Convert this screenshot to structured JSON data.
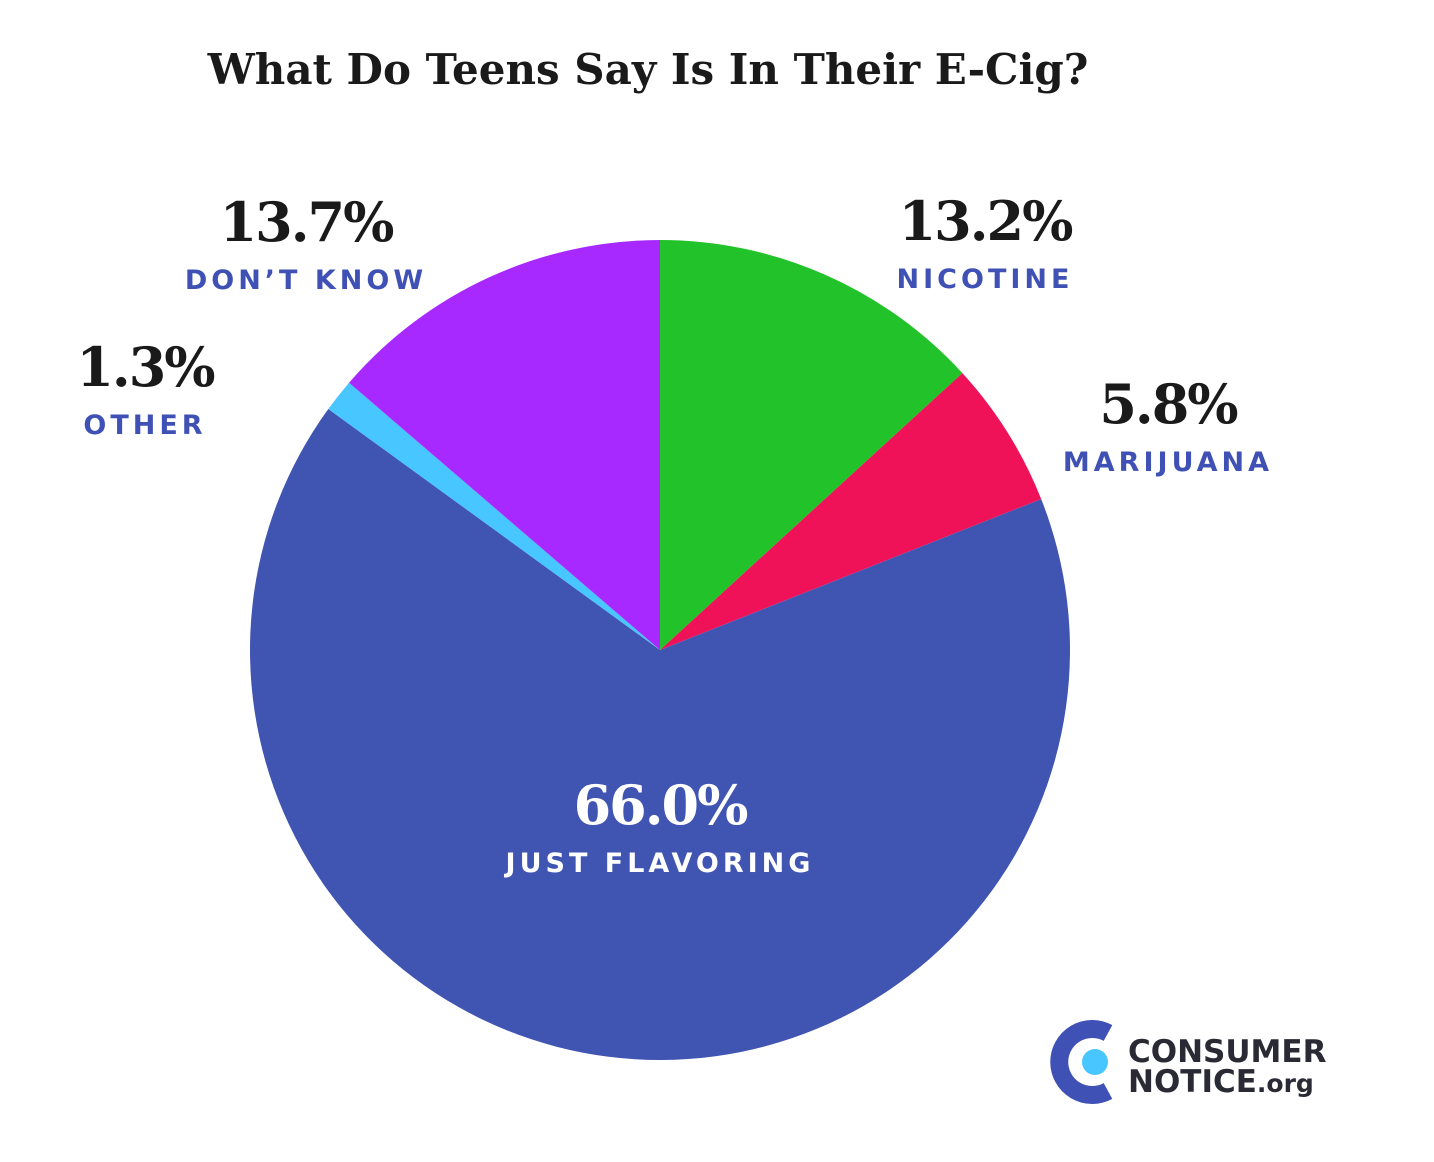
{
  "chart_data": {
    "type": "pie",
    "title": "What Do Teens Say Is In Their E-Cig?",
    "start_angle_deg": 0,
    "direction": "clockwise",
    "slices": [
      {
        "label": "NICOTINE",
        "value": 13.2,
        "value_label": "13.2%",
        "color": "#22c22a",
        "label_color": "#3f51b5",
        "value_color": "#1a1a1a"
      },
      {
        "label": "MARIJUANA",
        "value": 5.8,
        "value_label": "5.8%",
        "color": "#f01258",
        "label_color": "#3f51b5",
        "value_color": "#1a1a1a"
      },
      {
        "label": "JUST FLAVORING",
        "value": 66.0,
        "value_label": "66.0%",
        "color": "#4054b2",
        "label_color": "#ffffff",
        "value_color": "#ffffff"
      },
      {
        "label": "OTHER",
        "value": 1.3,
        "value_label": "1.3%",
        "color": "#48c6ff",
        "label_color": "#3f51b5",
        "value_color": "#1a1a1a"
      },
      {
        "label": "DON’T KNOW",
        "value": 13.7,
        "value_label": "13.7%",
        "color": "#a829ff",
        "label_color": "#3f51b5",
        "value_color": "#1a1a1a"
      }
    ]
  },
  "logo": {
    "line1": "CONSUMER",
    "line2": "NOTICE",
    "suffix": ".org",
    "icon": "consumer-notice-c-icon",
    "colors": {
      "arc": "#3f51b5",
      "dot": "#48c6ff"
    }
  }
}
